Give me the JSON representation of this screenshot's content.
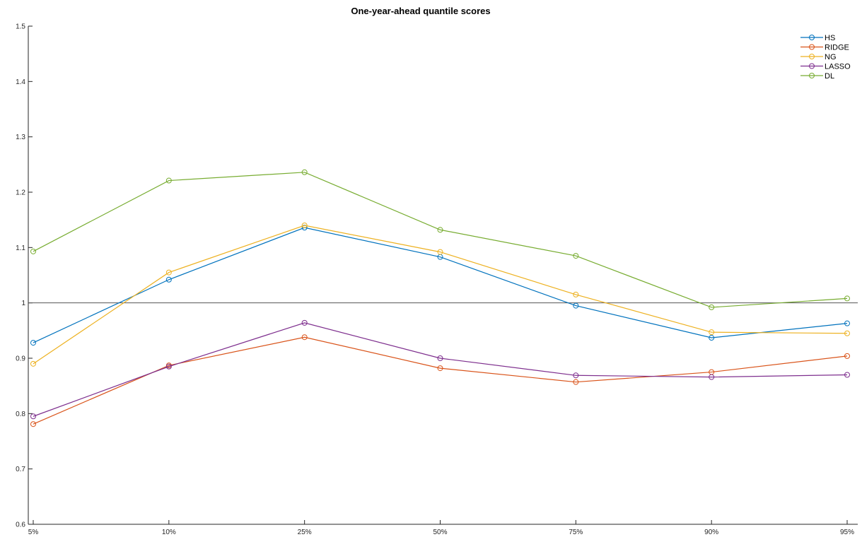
{
  "chart_data": {
    "type": "line",
    "title": "One-year-ahead quantile scores",
    "xlabel": "",
    "ylabel": "",
    "categories": [
      "5%",
      "10%",
      "25%",
      "50%",
      "75%",
      "90%",
      "95%"
    ],
    "ylim": [
      0.6,
      1.5
    ],
    "yticks": [
      "0.6",
      "0.7",
      "0.8",
      "0.9",
      "1",
      "1.1",
      "1.2",
      "1.3",
      "1.4",
      "1.5"
    ],
    "grid": false,
    "legend_position": "top-right",
    "reference_line": 1,
    "series": [
      {
        "name": "HS",
        "color": "#0072BD",
        "values": [
          0.928,
          1.042,
          1.136,
          1.083,
          0.995,
          0.937,
          0.963
        ]
      },
      {
        "name": "RIDGE",
        "color": "#D95319",
        "values": [
          0.781,
          0.887,
          0.938,
          0.882,
          0.857,
          0.875,
          0.904
        ]
      },
      {
        "name": "NG",
        "color": "#EDB120",
        "values": [
          0.89,
          1.055,
          1.14,
          1.092,
          1.015,
          0.947,
          0.945
        ]
      },
      {
        "name": "LASSO",
        "color": "#7E2F8E",
        "values": [
          0.795,
          0.885,
          0.964,
          0.9,
          0.869,
          0.866,
          0.87
        ]
      },
      {
        "name": "DL",
        "color": "#77AC30",
        "values": [
          1.093,
          1.221,
          1.236,
          1.132,
          1.085,
          0.992,
          1.008
        ]
      }
    ]
  }
}
